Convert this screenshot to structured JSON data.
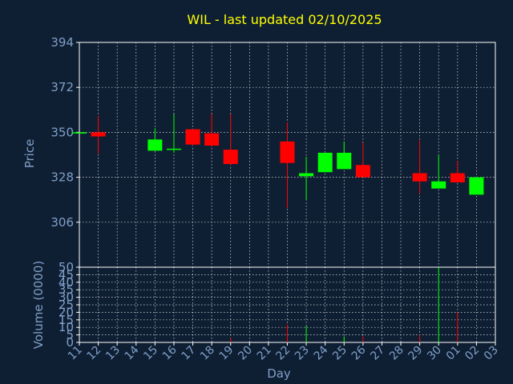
{
  "chart_data": {
    "type": "candlestick",
    "title": "WIL - last updated 02/10/2025",
    "xlabel": "Day",
    "price_panel": {
      "ylabel": "Price",
      "ylim": [
        284,
        394
      ],
      "yticks": [
        394,
        372,
        350,
        328,
        306
      ],
      "grid": true
    },
    "volume_panel": {
      "ylabel": "Volume (0000)",
      "ylim": [
        0,
        50
      ],
      "yticks": [
        0,
        5,
        10,
        15,
        20,
        25,
        30,
        35,
        40,
        45,
        50
      ],
      "grid": true
    },
    "x_tick_labels": [
      "11",
      "12",
      "13",
      "14",
      "15",
      "16",
      "17",
      "18",
      "19",
      "20",
      "21",
      "22",
      "23",
      "24",
      "25",
      "26",
      "27",
      "28",
      "29",
      "30",
      "01",
      "02",
      "03"
    ],
    "candles": [
      {
        "day": "11",
        "open": 350.0,
        "high": 350.0,
        "low": 350.0,
        "close": 350.0,
        "volume": 0
      },
      {
        "day": "12",
        "open": 350.0,
        "high": 358.0,
        "low": 339.5,
        "close": 348.0,
        "volume": 0
      },
      {
        "day": "15",
        "open": 341.0,
        "high": 352.0,
        "low": 341.0,
        "close": 346.5,
        "volume": 0
      },
      {
        "day": "16",
        "open": 341.5,
        "high": 359.0,
        "low": 340.0,
        "close": 342.0,
        "volume": 0
      },
      {
        "day": "17",
        "open": 351.5,
        "high": 351.5,
        "low": 343.5,
        "close": 344.0,
        "volume": 0
      },
      {
        "day": "18",
        "open": 349.5,
        "high": 359.0,
        "low": 343.0,
        "close": 343.5,
        "volume": 0
      },
      {
        "day": "19",
        "open": 341.5,
        "high": 359.0,
        "low": 334.0,
        "close": 334.5,
        "volume": 3
      },
      {
        "day": "22",
        "open": 345.5,
        "high": 355.0,
        "low": 313.0,
        "close": 335.0,
        "volume": 12
      },
      {
        "day": "23",
        "open": 328.5,
        "high": 338.0,
        "low": 317.0,
        "close": 330.0,
        "volume": 11
      },
      {
        "day": "24",
        "open": 330.5,
        "high": 340.0,
        "low": 330.5,
        "close": 340.0,
        "volume": 0
      },
      {
        "day": "25",
        "open": 332.0,
        "high": 345.5,
        "low": 332.0,
        "close": 340.0,
        "volume": 4
      },
      {
        "day": "26",
        "open": 334.0,
        "high": 345.0,
        "low": 328.0,
        "close": 328.0,
        "volume": 4
      },
      {
        "day": "29",
        "open": 330.0,
        "high": 346.0,
        "low": 320.0,
        "close": 326.0,
        "volume": 5
      },
      {
        "day": "30",
        "open": 322.5,
        "high": 339.0,
        "low": 322.5,
        "close": 326.0,
        "volume": 50
      },
      {
        "day": "01",
        "open": 330.0,
        "high": 336.0,
        "low": 325.5,
        "close": 325.5,
        "volume": 20
      },
      {
        "day": "02",
        "open": 319.5,
        "high": 328.0,
        "low": 319.5,
        "close": 328.0,
        "volume": 0
      }
    ],
    "colors": {
      "background": "#0f1f33",
      "up": "#00ff00",
      "down": "#ff0000",
      "axis_text": "#7f9fc8",
      "title": "#ffff00",
      "grid": "#ffffff"
    }
  }
}
